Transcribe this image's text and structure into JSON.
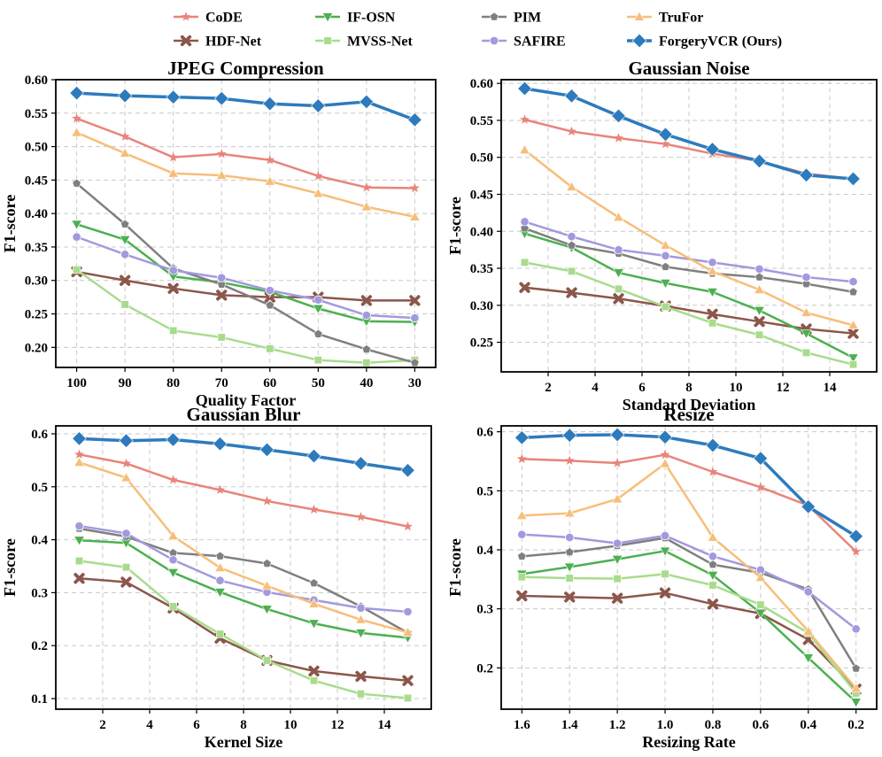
{
  "chart_data": {
    "type": "line",
    "legend": {
      "placement": "top-center",
      "entries": [
        {
          "name": "CoDE",
          "color": "#e8857a",
          "marker": "star"
        },
        {
          "name": "HDF-Net",
          "color": "#8c564b",
          "marker": "x"
        },
        {
          "name": "IF-OSN",
          "color": "#4cb050",
          "marker": "tri-down"
        },
        {
          "name": "MVSS-Net",
          "color": "#a8dc8c",
          "marker": "square"
        },
        {
          "name": "PIM",
          "color": "#7f7f7f",
          "marker": "pentagon"
        },
        {
          "name": "SAFIRE",
          "color": "#a29ade",
          "marker": "circle"
        },
        {
          "name": "TruFor",
          "color": "#f7be7a",
          "marker": "tri-up"
        },
        {
          "name": "ForgeryVCR (Ours)",
          "color": "#2d7bbd",
          "marker": "diamond"
        }
      ]
    },
    "panels": [
      {
        "title": "JPEG Compression",
        "xlabel": "Quality Factor",
        "ylabel": "F1-score",
        "x_categorical": true,
        "categories": [
          "100",
          "90",
          "80",
          "70",
          "60",
          "50",
          "40",
          "30"
        ],
        "ylim": [
          0.17,
          0.6
        ],
        "yticks": [
          "0.20",
          "0.25",
          "0.30",
          "0.35",
          "0.40",
          "0.45",
          "0.50",
          "0.55",
          "0.60"
        ],
        "grid": true,
        "series": [
          {
            "name": "CoDE",
            "values": [
              0.542,
              0.515,
              0.484,
              0.489,
              0.48,
              0.456,
              0.439,
              0.438
            ]
          },
          {
            "name": "HDF-Net",
            "values": [
              0.313,
              0.3,
              0.288,
              0.278,
              0.275,
              0.275,
              0.27,
              0.27
            ]
          },
          {
            "name": "IF-OSN",
            "values": [
              0.384,
              0.361,
              0.306,
              0.297,
              0.283,
              0.258,
              0.239,
              0.238
            ]
          },
          {
            "name": "MVSS-Net",
            "values": [
              0.316,
              0.264,
              0.225,
              0.215,
              0.198,
              0.181,
              0.177,
              0.181
            ]
          },
          {
            "name": "PIM",
            "values": [
              0.445,
              0.384,
              0.318,
              0.294,
              0.263,
              0.22,
              0.197,
              0.177
            ]
          },
          {
            "name": "SAFIRE",
            "values": [
              0.365,
              0.339,
              0.315,
              0.304,
              0.285,
              0.271,
              0.248,
              0.244
            ]
          },
          {
            "name": "TruFor",
            "values": [
              0.521,
              0.49,
              0.46,
              0.457,
              0.448,
              0.43,
              0.41,
              0.395
            ]
          },
          {
            "name": "ForgeryVCR (Ours)",
            "values": [
              0.58,
              0.576,
              0.574,
              0.572,
              0.564,
              0.561,
              0.567,
              0.54
            ]
          }
        ]
      },
      {
        "title": "Gaussian Noise",
        "xlabel": "Standard Deviation",
        "ylabel": "F1-score",
        "x": [
          1,
          3,
          5,
          7,
          9,
          11,
          13,
          15
        ],
        "xlim": [
          0,
          16
        ],
        "xticks": [
          2,
          4,
          6,
          8,
          10,
          12,
          14
        ],
        "ylim": [
          0.21,
          0.605
        ],
        "yticks": [
          "0.25",
          "0.30",
          "0.35",
          "0.40",
          "0.45",
          "0.50",
          "0.55",
          "0.60"
        ],
        "grid": true,
        "series": [
          {
            "name": "CoDE",
            "values": [
              0.551,
              0.535,
              0.526,
              0.518,
              0.505,
              0.495,
              0.478,
              0.471
            ]
          },
          {
            "name": "HDF-Net",
            "values": [
              0.324,
              0.317,
              0.309,
              0.299,
              0.288,
              0.278,
              0.268,
              0.262
            ]
          },
          {
            "name": "IF-OSN",
            "values": [
              0.397,
              0.378,
              0.344,
              0.33,
              0.318,
              0.293,
              0.262,
              0.229
            ]
          },
          {
            "name": "MVSS-Net",
            "values": [
              0.358,
              0.346,
              0.322,
              0.298,
              0.276,
              0.26,
              0.236,
              0.22
            ]
          },
          {
            "name": "PIM",
            "values": [
              0.404,
              0.381,
              0.37,
              0.352,
              0.343,
              0.338,
              0.329,
              0.318
            ]
          },
          {
            "name": "SAFIRE",
            "values": [
              0.413,
              0.393,
              0.375,
              0.367,
              0.358,
              0.349,
              0.338,
              0.332
            ]
          },
          {
            "name": "TruFor",
            "values": [
              0.51,
              0.46,
              0.419,
              0.381,
              0.346,
              0.321,
              0.29,
              0.273
            ]
          },
          {
            "name": "ForgeryVCR (Ours)",
            "values": [
              0.593,
              0.583,
              0.556,
              0.531,
              0.511,
              0.495,
              0.476,
              0.471
            ]
          }
        ]
      },
      {
        "title": "Gaussian Blur",
        "xlabel": "Kernel Size",
        "ylabel": "F1-score",
        "x": [
          1,
          3,
          5,
          7,
          9,
          11,
          13,
          15
        ],
        "xlim": [
          0,
          16
        ],
        "xticks": [
          2,
          4,
          6,
          8,
          10,
          12,
          14
        ],
        "ylim": [
          0.08,
          0.615
        ],
        "yticks": [
          "0.1",
          "0.2",
          "0.3",
          "0.4",
          "0.5",
          "0.6"
        ],
        "grid": true,
        "series": [
          {
            "name": "CoDE",
            "values": [
              0.561,
              0.544,
              0.513,
              0.494,
              0.473,
              0.457,
              0.443,
              0.425
            ]
          },
          {
            "name": "HDF-Net",
            "values": [
              0.327,
              0.32,
              0.271,
              0.214,
              0.172,
              0.152,
              0.142,
              0.134
            ]
          },
          {
            "name": "IF-OSN",
            "values": [
              0.399,
              0.394,
              0.338,
              0.301,
              0.269,
              0.242,
              0.224,
              0.215
            ]
          },
          {
            "name": "MVSS-Net",
            "values": [
              0.36,
              0.348,
              0.274,
              0.222,
              0.172,
              0.134,
              0.109,
              0.101
            ]
          },
          {
            "name": "PIM",
            "values": [
              0.421,
              0.406,
              0.375,
              0.369,
              0.355,
              0.318,
              0.274,
              0.224
            ]
          },
          {
            "name": "SAFIRE",
            "values": [
              0.426,
              0.412,
              0.362,
              0.323,
              0.301,
              0.286,
              0.271,
              0.264
            ]
          },
          {
            "name": "TruFor",
            "values": [
              0.546,
              0.517,
              0.407,
              0.347,
              0.313,
              0.279,
              0.249,
              0.225
            ]
          },
          {
            "name": "ForgeryVCR (Ours)",
            "values": [
              0.591,
              0.587,
              0.589,
              0.581,
              0.57,
              0.558,
              0.544,
              0.531
            ]
          }
        ]
      },
      {
        "title": "Resize",
        "xlabel": "Resizing Rate",
        "ylabel": "F1-score",
        "x_categorical": true,
        "categories": [
          "1.6",
          "1.4",
          "1.2",
          "1.0",
          "0.8",
          "0.6",
          "0.4",
          "0.2"
        ],
        "ylim": [
          0.13,
          0.61
        ],
        "yticks": [
          "0.2",
          "0.3",
          "0.4",
          "0.5",
          "0.6"
        ],
        "grid": true,
        "series": [
          {
            "name": "CoDE",
            "values": [
              0.554,
              0.551,
              0.547,
              0.561,
              0.532,
              0.506,
              0.475,
              0.397
            ]
          },
          {
            "name": "HDF-Net",
            "values": [
              0.322,
              0.32,
              0.318,
              0.327,
              0.308,
              0.292,
              0.248,
              0.164
            ]
          },
          {
            "name": "IF-OSN",
            "values": [
              0.359,
              0.371,
              0.384,
              0.398,
              0.357,
              0.293,
              0.217,
              0.142
            ]
          },
          {
            "name": "MVSS-Net",
            "values": [
              0.354,
              0.352,
              0.351,
              0.359,
              0.34,
              0.307,
              0.259,
              0.157
            ]
          },
          {
            "name": "PIM",
            "values": [
              0.389,
              0.396,
              0.407,
              0.42,
              0.375,
              0.361,
              0.333,
              0.199
            ]
          },
          {
            "name": "SAFIRE",
            "values": [
              0.426,
              0.421,
              0.411,
              0.424,
              0.389,
              0.366,
              0.329,
              0.266
            ]
          },
          {
            "name": "TruFor",
            "values": [
              0.458,
              0.462,
              0.486,
              0.546,
              0.421,
              0.353,
              0.262,
              0.165
            ]
          },
          {
            "name": "ForgeryVCR (Ours)",
            "values": [
              0.59,
              0.594,
              0.595,
              0.591,
              0.577,
              0.555,
              0.473,
              0.423
            ]
          }
        ]
      }
    ]
  }
}
